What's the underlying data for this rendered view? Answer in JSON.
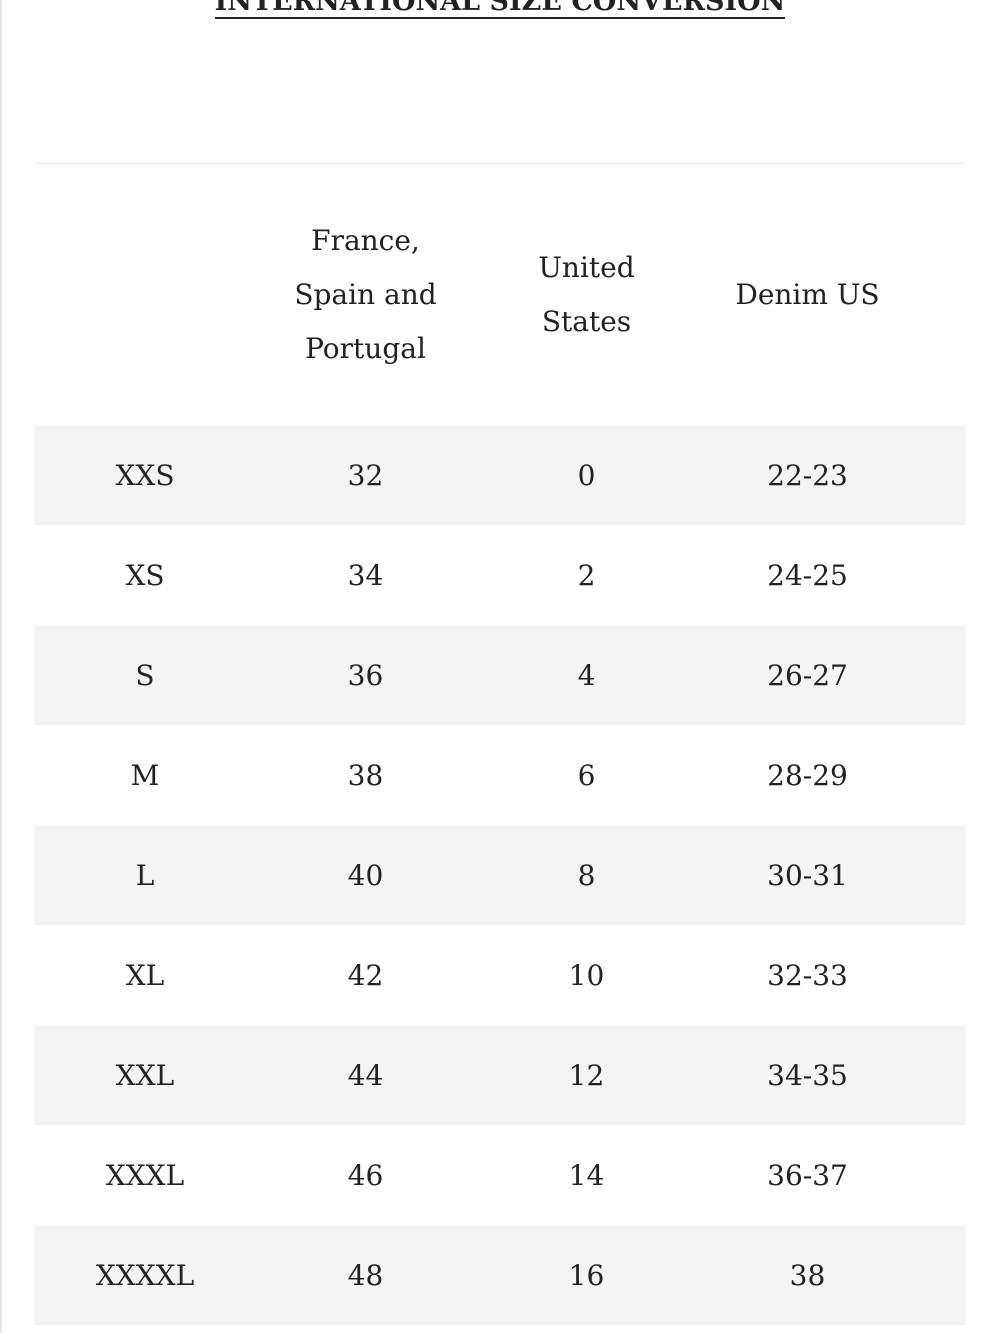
{
  "title": "INTERNATIONAL SIZE CONVERSION",
  "table": {
    "header": [
      "France, Spain and Portugal",
      "United States",
      "Denim US"
    ],
    "rows": [
      [
        "XXS",
        "32",
        "0",
        "22-23"
      ],
      [
        "XS",
        "34",
        "2",
        "24-25"
      ],
      [
        "S",
        "36",
        "4",
        "26-27"
      ],
      [
        "M",
        "38",
        "6",
        "28-29"
      ],
      [
        "L",
        "40",
        "8",
        "30-31"
      ],
      [
        "XL",
        "42",
        "10",
        "32-33"
      ],
      [
        "XXL",
        "44",
        "12",
        "34-35"
      ],
      [
        "XXXL",
        "46",
        "14",
        "36-37"
      ],
      [
        "XXXXL",
        "48",
        "16",
        "38"
      ]
    ]
  }
}
